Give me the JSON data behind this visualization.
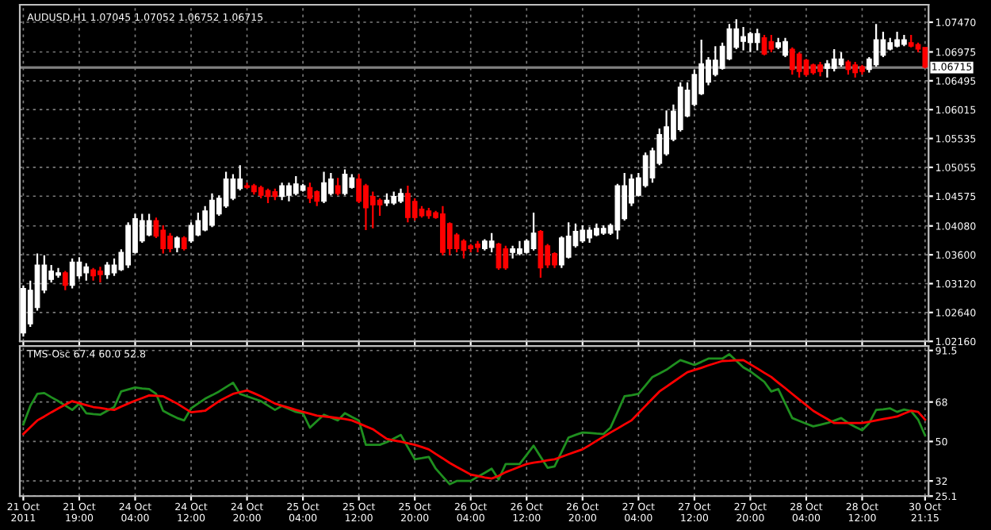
{
  "chart_data": [
    {
      "type": "candlestick",
      "title": "AUDUSD,H1 1.07045 1.07052 1.06752 1.06715",
      "categories": [
        null,
        null,
        null,
        null,
        null,
        null,
        null,
        null,
        null,
        null,
        null,
        null,
        null,
        null,
        null,
        null,
        null,
        null,
        null,
        null,
        null,
        null,
        null,
        null,
        null,
        null,
        null,
        null,
        null,
        null,
        null,
        null,
        null,
        null,
        null,
        null,
        null,
        null,
        null,
        null,
        null,
        null,
        null,
        null,
        null,
        null,
        null,
        null,
        null,
        null,
        null,
        null,
        null,
        null,
        null,
        null,
        null,
        null,
        null,
        null,
        null,
        null,
        null,
        null,
        null,
        null,
        null,
        null,
        null,
        null,
        null,
        null,
        null,
        null,
        null,
        null,
        null,
        null,
        null,
        null,
        null,
        null,
        null,
        null,
        null,
        null,
        null,
        null,
        null,
        null,
        null,
        null,
        null,
        null,
        null,
        null,
        null,
        null,
        null,
        null,
        null,
        null,
        null,
        null,
        null,
        null,
        null,
        null,
        null,
        null,
        null,
        null,
        null,
        null,
        null,
        null,
        null,
        null,
        null,
        null,
        null,
        null,
        null,
        null,
        null,
        null,
        null,
        null,
        null,
        null
      ],
      "ohlc": [
        [
          1.023,
          1.0309,
          1.0224,
          1.0304
        ],
        [
          1.0245,
          1.0317,
          1.024,
          1.0301
        ],
        [
          1.0272,
          1.0362,
          1.0267,
          1.0343
        ],
        [
          1.0301,
          1.0359,
          1.0296,
          1.0343
        ],
        [
          1.0319,
          1.0343,
          1.0314,
          1.0333
        ],
        [
          1.0326,
          1.0338,
          1.0322,
          1.033
        ],
        [
          1.033,
          1.0333,
          1.0301,
          1.0309
        ],
        [
          1.0309,
          1.0354,
          1.0304,
          1.0348
        ],
        [
          1.0325,
          1.0356,
          1.032,
          1.0348
        ],
        [
          1.033,
          1.0346,
          1.0317,
          1.034
        ],
        [
          1.0335,
          1.0338,
          1.0317,
          1.0325
        ],
        [
          1.0333,
          1.034,
          1.0314,
          1.0327
        ],
        [
          1.0327,
          1.0348,
          1.032,
          1.0343
        ],
        [
          1.033,
          1.0354,
          1.0325,
          1.0343
        ],
        [
          1.0335,
          1.0369,
          1.0333,
          1.0364
        ],
        [
          1.0343,
          1.0414,
          1.0338,
          1.0409
        ],
        [
          1.0364,
          1.0428,
          1.0362,
          1.042
        ],
        [
          1.0383,
          1.0428,
          1.038,
          1.0417
        ],
        [
          1.0393,
          1.0428,
          1.0391,
          1.0417
        ],
        [
          1.0417,
          1.0422,
          1.0388,
          1.0391
        ],
        [
          1.0401,
          1.0409,
          1.0362,
          1.037
        ],
        [
          1.0391,
          1.0396,
          1.0364,
          1.037
        ],
        [
          1.0372,
          1.0391,
          1.0364,
          1.0388
        ],
        [
          1.0388,
          1.0391,
          1.0367,
          1.037
        ],
        [
          1.0383,
          1.0414,
          1.038,
          1.0409
        ],
        [
          1.0393,
          1.043,
          1.0391,
          1.0417
        ],
        [
          1.0401,
          1.0441,
          1.0399,
          1.0433
        ],
        [
          1.0409,
          1.0462,
          1.0406,
          1.0451
        ],
        [
          1.0428,
          1.0459,
          1.0425,
          1.0454
        ],
        [
          1.0441,
          1.0498,
          1.0438,
          1.0486
        ],
        [
          1.0454,
          1.0494,
          1.0451,
          1.0486
        ],
        [
          1.047,
          1.0509,
          1.0467,
          1.0486
        ],
        [
          1.0475,
          1.048,
          1.047,
          1.0472
        ],
        [
          1.0475,
          1.0478,
          1.046,
          1.0465
        ],
        [
          1.0472,
          1.0475,
          1.0454,
          1.0459
        ],
        [
          1.0467,
          1.047,
          1.0446,
          1.0457
        ],
        [
          1.0465,
          1.047,
          1.0451,
          1.0457
        ],
        [
          1.0457,
          1.048,
          1.0451,
          1.0475
        ],
        [
          1.0459,
          1.048,
          1.0449,
          1.0475
        ],
        [
          1.0462,
          1.0491,
          1.0459,
          1.0478
        ],
        [
          1.0467,
          1.0478,
          1.0465,
          1.0475
        ],
        [
          1.0472,
          1.048,
          1.0446,
          1.0454
        ],
        [
          1.0465,
          1.0467,
          1.0441,
          1.0449
        ],
        [
          1.0449,
          1.0498,
          1.0446,
          1.048
        ],
        [
          1.0462,
          1.0496,
          1.0459,
          1.0486
        ],
        [
          1.0475,
          1.0488,
          1.0459,
          1.0462
        ],
        [
          1.0462,
          1.0502,
          1.0459,
          1.0494
        ],
        [
          1.0472,
          1.0494,
          1.047,
          1.0488
        ],
        [
          1.0486,
          1.0494,
          1.0446,
          1.0449
        ],
        [
          1.0475,
          1.0478,
          1.0401,
          1.0438
        ],
        [
          1.0457,
          1.0465,
          1.0404,
          1.0443
        ],
        [
          1.0451,
          1.0454,
          1.0425,
          1.0443
        ],
        [
          1.0446,
          1.0462,
          1.0441,
          1.0451
        ],
        [
          1.0446,
          1.0465,
          1.0443,
          1.0457
        ],
        [
          1.0449,
          1.047,
          1.0446,
          1.0462
        ],
        [
          1.0462,
          1.0475,
          1.0414,
          1.0422
        ],
        [
          1.0449,
          1.0454,
          1.0417,
          1.0422
        ],
        [
          1.0436,
          1.0441,
          1.0422,
          1.0425
        ],
        [
          1.0433,
          1.0438,
          1.042,
          1.0425
        ],
        [
          1.043,
          1.0433,
          1.042,
          1.0422
        ],
        [
          1.0428,
          1.0441,
          1.0359,
          1.0364
        ],
        [
          1.0412,
          1.0414,
          1.0359,
          1.037
        ],
        [
          1.0393,
          1.0396,
          1.0364,
          1.037
        ],
        [
          1.0383,
          1.0386,
          1.0354,
          1.0367
        ],
        [
          1.0375,
          1.0378,
          1.0364,
          1.037
        ],
        [
          1.0378,
          1.0383,
          1.0364,
          1.0372
        ],
        [
          1.037,
          1.0386,
          1.0367,
          1.0383
        ],
        [
          1.0372,
          1.0396,
          1.0364,
          1.0383
        ],
        [
          1.0378,
          1.038,
          1.0335,
          1.0338
        ],
        [
          1.037,
          1.0375,
          1.0335,
          1.0338
        ],
        [
          1.0364,
          1.0375,
          1.0354,
          1.037
        ],
        [
          1.0362,
          1.0383,
          1.0359,
          1.037
        ],
        [
          1.0364,
          1.0386,
          1.0362,
          1.0383
        ],
        [
          1.037,
          1.043,
          1.0367,
          1.0396
        ],
        [
          1.0399,
          1.0401,
          1.0322,
          1.0338
        ],
        [
          1.0375,
          1.0378,
          1.0338,
          1.0343
        ],
        [
          1.0362,
          1.0364,
          1.0338,
          1.0343
        ],
        [
          1.0343,
          1.0391,
          1.0338,
          1.0388
        ],
        [
          1.0356,
          1.0414,
          1.0354,
          1.0391
        ],
        [
          1.0375,
          1.0412,
          1.0372,
          1.0399
        ],
        [
          1.0383,
          1.0409,
          1.038,
          1.0401
        ],
        [
          1.0388,
          1.0406,
          1.038,
          1.0401
        ],
        [
          1.0393,
          1.0412,
          1.0391,
          1.0404
        ],
        [
          1.0396,
          1.0409,
          1.0393,
          1.0404
        ],
        [
          1.0396,
          1.0412,
          1.0393,
          1.0409
        ],
        [
          1.0401,
          1.0478,
          1.0386,
          1.0475
        ],
        [
          1.042,
          1.0496,
          1.0417,
          1.0475
        ],
        [
          1.0446,
          1.0494,
          1.0441,
          1.0486
        ],
        [
          1.0459,
          1.0496,
          1.0457,
          1.0488
        ],
        [
          1.0475,
          1.053,
          1.0472,
          1.0525
        ],
        [
          1.0488,
          1.0538,
          1.048,
          1.0533
        ],
        [
          1.0512,
          1.057,
          1.0509,
          1.056
        ],
        [
          1.0528,
          1.06,
          1.0525,
          1.0573
        ],
        [
          1.0552,
          1.061,
          1.0549,
          1.0599
        ],
        [
          1.0568,
          1.0647,
          1.0565,
          1.0639
        ],
        [
          1.0591,
          1.0647,
          1.0589,
          1.0634
        ],
        [
          1.061,
          1.0668,
          1.0607,
          1.066
        ],
        [
          1.0628,
          1.0718,
          1.0626,
          1.0678
        ],
        [
          1.0647,
          1.0689,
          1.0642,
          1.0684
        ],
        [
          1.066,
          1.0707,
          1.0657,
          1.0684
        ],
        [
          1.067,
          1.0713,
          1.0668,
          1.0707
        ],
        [
          1.0686,
          1.0744,
          1.0684,
          1.0736
        ],
        [
          1.0705,
          1.0752,
          1.0702,
          1.0736
        ],
        [
          1.0715,
          1.0739,
          1.07,
          1.0723
        ],
        [
          1.0713,
          1.0731,
          1.0697,
          1.0728
        ],
        [
          1.0713,
          1.0736,
          1.07,
          1.0728
        ],
        [
          1.0721,
          1.0726,
          1.0692,
          1.0694
        ],
        [
          1.0715,
          1.0726,
          1.0697,
          1.0702
        ],
        [
          1.0705,
          1.0721,
          1.0702,
          1.0713
        ],
        [
          1.0692,
          1.0721,
          1.0689,
          1.0715
        ],
        [
          1.0702,
          1.0705,
          1.066,
          1.0668
        ],
        [
          1.0694,
          1.0697,
          1.0655,
          1.0665
        ],
        [
          1.0684,
          1.0686,
          1.0657,
          1.066
        ],
        [
          1.0676,
          1.0678,
          1.066,
          1.0663
        ],
        [
          1.0676,
          1.0681,
          1.0657,
          1.0665
        ],
        [
          1.067,
          1.0684,
          1.0655,
          1.0678
        ],
        [
          1.067,
          1.0702,
          1.0665,
          1.0686
        ],
        [
          1.0676,
          1.0697,
          1.0673,
          1.0686
        ],
        [
          1.0681,
          1.0684,
          1.066,
          1.0668
        ],
        [
          1.0676,
          1.0681,
          1.0655,
          1.0663
        ],
        [
          1.0673,
          1.0676,
          1.066,
          1.0665
        ],
        [
          1.0668,
          1.0689,
          1.0663,
          1.0686
        ],
        [
          1.0676,
          1.0744,
          1.0673,
          1.0718
        ],
        [
          1.0692,
          1.0731,
          1.0689,
          1.0718
        ],
        [
          1.0702,
          1.0721,
          1.07,
          1.0713
        ],
        [
          1.0707,
          1.0731,
          1.0705,
          1.0718
        ],
        [
          1.071,
          1.0726,
          1.0707,
          1.0718
        ],
        [
          1.0713,
          1.0726,
          1.0705,
          1.0707
        ],
        [
          1.071,
          1.0713,
          1.0697,
          1.0702
        ],
        [
          1.0705,
          1.0705,
          1.067,
          1.0672
        ]
      ],
      "colors": [
        "#ffffff",
        "#ffffff",
        "#ffffff",
        "#ffffff",
        "#ffffff",
        "#ffffff",
        "#ff0000",
        "#ffffff",
        "#ffffff",
        "#ffffff",
        "#ff0000",
        "#ff0000",
        "#ffffff",
        "#ffffff",
        "#ffffff",
        "#ffffff",
        "#ffffff",
        "#ffffff",
        "#ffffff",
        "#ff0000",
        "#ff0000",
        "#ff0000",
        "#ffffff",
        "#ff0000",
        "#ffffff",
        "#ffffff",
        "#ffffff",
        "#ffffff",
        "#ffffff",
        "#ffffff",
        "#ffffff",
        "#ffffff",
        "#ff0000",
        "#ff0000",
        "#ff0000",
        "#ff0000",
        "#ff0000",
        "#ffffff",
        "#ffffff",
        "#ffffff",
        "#ffffff",
        "#ff0000",
        "#ff0000",
        "#ffffff",
        "#ffffff",
        "#ff0000",
        "#ffffff",
        "#ffffff",
        "#ff0000",
        "#ff0000",
        "#ff0000",
        "#ff0000",
        "#ffffff",
        "#ffffff",
        "#ffffff",
        "#ff0000",
        "#ff0000",
        "#ff0000",
        "#ff0000",
        "#ff0000",
        "#ff0000",
        "#ff0000",
        "#ff0000",
        "#ff0000",
        "#ff0000",
        "#ff0000",
        "#ffffff",
        "#ffffff",
        "#ff0000",
        "#ff0000",
        "#ffffff",
        "#ffffff",
        "#ffffff",
        "#ffffff",
        "#ff0000",
        "#ff0000",
        "#ff0000",
        "#ffffff",
        "#ffffff",
        "#ffffff",
        "#ffffff",
        "#ffffff",
        "#ffffff",
        "#ffffff",
        "#ffffff",
        "#ffffff",
        "#ffffff",
        "#ffffff",
        "#ffffff",
        "#ffffff",
        "#ffffff",
        "#ffffff",
        "#ffffff",
        "#ffffff",
        "#ffffff",
        "#ffffff",
        "#ffffff",
        "#ffffff",
        "#ffffff",
        "#ffffff",
        "#ffffff",
        "#ffffff",
        "#ffffff",
        "#ffffff",
        "#ffffff",
        "#ffffff",
        "#ff0000",
        "#ff0000",
        "#ffffff",
        "#ffffff",
        "#ff0000",
        "#ff0000",
        "#ff0000",
        "#ff0000",
        "#ff0000",
        "#ffffff",
        "#ffffff",
        "#ffffff",
        "#ff0000",
        "#ff0000",
        "#ff0000",
        "#ffffff",
        "#ffffff",
        "#ffffff",
        "#ffffff",
        "#ffffff",
        "#ffffff",
        "#ff0000",
        "#ff0000",
        "#ff0000"
      ],
      "ylim": [
        1.0216,
        1.0776
      ],
      "yticks": [
        {
          "value": 1.0747,
          "label": "1.07470"
        },
        {
          "value": 1.06975,
          "label": "1.06975"
        },
        {
          "value": 1.06495,
          "label": "1.06495"
        },
        {
          "value": 1.06015,
          "label": "1.06015"
        },
        {
          "value": 1.05535,
          "label": "1.05535"
        },
        {
          "value": 1.05055,
          "label": "1.05055"
        },
        {
          "value": 1.04575,
          "label": "1.04575"
        },
        {
          "value": 1.0408,
          "label": "1.04080"
        },
        {
          "value": 1.036,
          "label": "1.03600"
        },
        {
          "value": 1.0312,
          "label": "1.03120"
        },
        {
          "value": 1.0264,
          "label": "1.02640"
        },
        {
          "value": 1.0216,
          "label": "1.02160"
        }
      ],
      "ref_lines": [
        {
          "axis": "y",
          "value": 1.06715,
          "label": "1.06715",
          "color": "#808080"
        }
      ],
      "grid": true,
      "tick_labels": "y"
    },
    {
      "type": "line",
      "title": "TMS-Osc 67.4 60.0 52.8",
      "categories": [
        "21 Oct 2011",
        null,
        null,
        null,
        null,
        null,
        null,
        null,
        "21 Oct 19:00",
        null,
        null,
        null,
        null,
        null,
        null,
        null,
        "24 Oct 04:00",
        null,
        null,
        null,
        null,
        null,
        null,
        null,
        "24 Oct 12:00",
        null,
        null,
        null,
        null,
        null,
        null,
        null,
        "24 Oct 20:00",
        null,
        null,
        null,
        null,
        null,
        null,
        null,
        "25 Oct 04:00",
        null,
        null,
        null,
        null,
        null,
        null,
        null,
        "25 Oct 12:00",
        null,
        null,
        null,
        null,
        null,
        null,
        null,
        "25 Oct 20:00",
        null,
        null,
        null,
        null,
        null,
        null,
        null,
        "26 Oct 04:00",
        null,
        null,
        null,
        null,
        null,
        null,
        null,
        "26 Oct 12:00",
        null,
        null,
        null,
        null,
        null,
        null,
        null,
        "26 Oct 20:00",
        null,
        null,
        null,
        null,
        null,
        null,
        null,
        "27 Oct 04:00",
        null,
        null,
        null,
        null,
        null,
        null,
        null,
        "27 Oct 12:00",
        null,
        null,
        null,
        null,
        null,
        null,
        null,
        "27 Oct 20:00",
        null,
        null,
        null,
        null,
        null,
        null,
        null,
        "28 Oct 04:00",
        null,
        null,
        null,
        null,
        null,
        null,
        null,
        "28 Oct 12:00",
        null,
        null,
        null,
        null,
        null,
        null,
        null,
        null,
        "30 Oct 21:15"
      ],
      "series": [
        {
          "color": "#1f8f1f",
          "values": [
            57.8,
            66.2,
            71.7,
            72.1,
            70.2,
            68.4,
            66.4,
            64.4,
            67.3,
            62.9,
            62.5,
            62.2,
            64.0,
            65.7,
            72.8,
            73.7,
            74.6,
            74.2,
            73.9,
            71.7,
            64.0,
            62.3,
            60.7,
            59.6,
            65.1,
            67.3,
            69.5,
            71.1,
            72.8,
            74.8,
            76.8,
            71.7,
            70.6,
            69.5,
            68.4,
            66.4,
            64.4,
            66.2,
            64.8,
            63.5,
            62.9,
            56.3,
            59.3,
            62.2,
            60.9,
            59.6,
            62.9,
            61.2,
            59.6,
            48.5,
            48.5,
            48.5,
            49.7,
            51.3,
            53.0,
            47.4,
            41.9,
            42.4,
            43.0,
            37.6,
            34.0,
            30.5,
            32.0,
            32.0,
            32.0,
            33.9,
            35.7,
            37.6,
            32.7,
            39.7,
            39.7,
            39.7,
            43.9,
            48.1,
            43.0,
            38.0,
            38.6,
            45.2,
            51.8,
            53.0,
            54.1,
            53.9,
            53.6,
            53.4,
            56.3,
            63.4,
            70.6,
            71.1,
            71.7,
            75.5,
            79.4,
            81.0,
            82.7,
            84.9,
            87.1,
            86.0,
            84.9,
            86.3,
            87.8,
            87.8,
            87.8,
            89.8,
            86.8,
            83.8,
            82.0,
            79.6,
            77.2,
            72.8,
            73.9,
            67.3,
            60.7,
            59.4,
            58.1,
            56.9,
            57.6,
            58.4,
            59.5,
            60.7,
            58.4,
            56.7,
            55.1,
            58.4,
            64.4,
            64.7,
            65.1,
            63.5,
            64.6,
            63.9,
            60.0,
            52.8
          ]
        },
        {
          "color": "#ff0000",
          "values": [
            53.4,
            56.5,
            59.6,
            61.4,
            63.3,
            65.1,
            66.8,
            68.4,
            67.5,
            66.6,
            65.7,
            65.3,
            64.8,
            64.4,
            65.9,
            67.3,
            68.6,
            69.8,
            71.0,
            70.8,
            70.6,
            69.0,
            67.3,
            65.3,
            63.3,
            63.7,
            64.0,
            66.2,
            68.4,
            70.1,
            71.7,
            72.5,
            73.3,
            72.0,
            70.6,
            69.0,
            67.3,
            66.3,
            65.4,
            64.4,
            63.5,
            62.7,
            61.8,
            61.4,
            61.1,
            60.7,
            60.2,
            59.6,
            58.3,
            56.9,
            55.6,
            53.4,
            51.2,
            50.5,
            49.9,
            49.2,
            48.5,
            47.5,
            46.4,
            44.3,
            42.3,
            40.2,
            38.4,
            36.7,
            34.9,
            34.3,
            33.6,
            33.1,
            34.3,
            36.0,
            37.2,
            38.5,
            39.7,
            40.3,
            40.8,
            41.4,
            41.9,
            43.0,
            44.2,
            45.3,
            46.4,
            48.3,
            50.3,
            52.2,
            54.1,
            55.9,
            57.8,
            59.6,
            62.9,
            66.2,
            69.5,
            72.8,
            75.0,
            77.2,
            79.4,
            81.6,
            82.6,
            83.6,
            84.7,
            85.7,
            86.7,
            86.8,
            87.0,
            87.1,
            85.2,
            83.3,
            81.3,
            79.4,
            76.8,
            74.3,
            71.7,
            69.1,
            66.6,
            64.0,
            62.1,
            60.3,
            58.4,
            58.4,
            58.4,
            58.4,
            58.4,
            59.0,
            59.6,
            60.2,
            60.8,
            61.4,
            62.7,
            64.0,
            63.5,
            60.0
          ]
        }
      ],
      "ylim": [
        25.1,
        93.5
      ],
      "yticks": [
        91.5,
        68,
        50,
        32,
        25.1
      ],
      "grid": true
    }
  ]
}
